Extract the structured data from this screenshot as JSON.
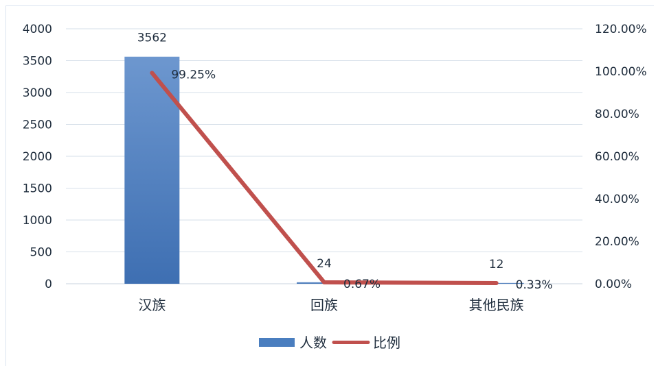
{
  "chart_data": {
    "type": "bar+line",
    "categories": [
      "汉族",
      "回族",
      "其他民族"
    ],
    "series": [
      {
        "name": "人数",
        "type": "bar",
        "axis": "left",
        "values": [
          3562,
          24,
          12
        ],
        "labels": [
          "3562",
          "24",
          "12"
        ],
        "color": "#4a7ebf"
      },
      {
        "name": "比例",
        "type": "line",
        "axis": "right",
        "values": [
          99.25,
          0.67,
          0.33
        ],
        "labels": [
          "99.25%",
          "0.67%",
          "0.33%"
        ],
        "color": "#c0504d"
      }
    ],
    "left_axis": {
      "ylim": [
        0,
        4000
      ],
      "ticks": [
        "0",
        "500",
        "1000",
        "1500",
        "2000",
        "2500",
        "3000",
        "3500",
        "4000"
      ]
    },
    "right_axis": {
      "ylim": [
        0,
        120
      ],
      "ticks": [
        "0.00%",
        "20.00%",
        "40.00%",
        "60.00%",
        "80.00%",
        "100.00%",
        "120.00%"
      ]
    },
    "grid": true,
    "legend": "bottom"
  }
}
